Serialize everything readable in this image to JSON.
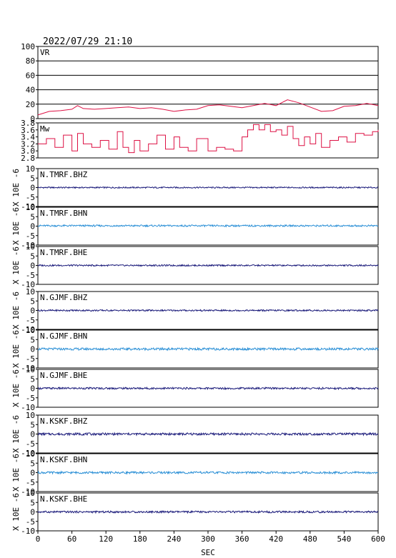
{
  "chart_data": {
    "type": "line",
    "title": "2022/07/29 21:10",
    "xlabel": "SEC",
    "xlim": [
      0,
      600
    ],
    "xticks": [
      "0",
      "60",
      "120",
      "180",
      "240",
      "300",
      "360",
      "420",
      "480",
      "540",
      "600"
    ],
    "xtick_values": [
      0,
      60,
      120,
      180,
      240,
      300,
      360,
      420,
      480,
      540,
      600
    ],
    "colors": {
      "vr": "#dd1144",
      "mw": "#dd1144",
      "dark": "#1a1a7a",
      "light": "#2a8fd6"
    },
    "vr": {
      "label": "VR",
      "ylim": [
        0,
        100
      ],
      "yticks": [
        "0",
        "20",
        "40",
        "60",
        "80",
        "100"
      ],
      "ytick_values": [
        0,
        20,
        40,
        60,
        80,
        100
      ],
      "x": [
        0,
        20,
        40,
        60,
        70,
        80,
        100,
        120,
        140,
        160,
        180,
        200,
        220,
        240,
        260,
        280,
        300,
        320,
        340,
        360,
        380,
        400,
        420,
        440,
        460,
        480,
        500,
        520,
        540,
        560,
        580,
        600
      ],
      "values": [
        5,
        10,
        11,
        13,
        18,
        14,
        13,
        14,
        15,
        16,
        14,
        15,
        13,
        10,
        12,
        13,
        18,
        19,
        17,
        15,
        18,
        21,
        18,
        26,
        22,
        16,
        10,
        11,
        17,
        18,
        21,
        18
      ]
    },
    "mw": {
      "label": "Mw",
      "ylim": [
        2.8,
        3.8
      ],
      "yticks": [
        "2.8",
        "3.0",
        "3.2",
        "3.4",
        "3.6",
        "3.8"
      ],
      "ytick_values": [
        2.8,
        3.0,
        3.2,
        3.4,
        3.6,
        3.8
      ],
      "x": [
        0,
        15,
        30,
        45,
        60,
        70,
        80,
        95,
        110,
        125,
        140,
        150,
        160,
        170,
        180,
        195,
        210,
        225,
        240,
        250,
        265,
        280,
        300,
        315,
        330,
        345,
        360,
        370,
        380,
        390,
        400,
        410,
        420,
        430,
        440,
        450,
        460,
        470,
        480,
        490,
        500,
        515,
        530,
        545,
        560,
        575,
        590,
        600
      ],
      "values": [
        3.2,
        3.35,
        3.1,
        3.45,
        3.0,
        3.5,
        3.2,
        3.1,
        3.3,
        3.05,
        3.55,
        3.1,
        2.95,
        3.3,
        3.0,
        3.2,
        3.45,
        3.05,
        3.4,
        3.1,
        3.0,
        3.35,
        3.0,
        3.1,
        3.05,
        3.0,
        3.4,
        3.6,
        3.75,
        3.6,
        3.75,
        3.55,
        3.6,
        3.45,
        3.7,
        3.35,
        3.15,
        3.4,
        3.2,
        3.5,
        3.1,
        3.3,
        3.4,
        3.25,
        3.5,
        3.45,
        3.55,
        3.6
      ]
    },
    "traces_ylabel": "X 10E -6",
    "traces_ylim": [
      -10,
      10
    ],
    "traces_yticks": [
      "-10",
      "-5",
      "0",
      "5",
      "10"
    ],
    "traces_ytick_values": [
      -10,
      -5,
      0,
      5,
      10
    ],
    "traces": [
      {
        "name": "N.TMRF.BHZ",
        "color": "dark",
        "amp": 0.35,
        "offset": 0
      },
      {
        "name": "N.TMRF.BHN",
        "color": "light",
        "amp": 0.45,
        "offset": 0.2
      },
      {
        "name": "N.TMRF.BHE",
        "color": "dark",
        "amp": 0.4,
        "offset": 0
      },
      {
        "name": "N.GJMF.BHZ",
        "color": "dark",
        "amp": 0.4,
        "offset": 0
      },
      {
        "name": "N.GJMF.BHN",
        "color": "light",
        "amp": 0.6,
        "offset": 0
      },
      {
        "name": "N.GJMF.BHE",
        "color": "dark",
        "amp": 0.5,
        "offset": 0
      },
      {
        "name": "N.KSKF.BHZ",
        "color": "dark",
        "amp": 0.6,
        "offset": 0
      },
      {
        "name": "N.KSKF.BHN",
        "color": "light",
        "amp": 0.55,
        "offset": 0
      },
      {
        "name": "N.KSKF.BHE",
        "color": "dark",
        "amp": 0.5,
        "offset": 0
      }
    ]
  }
}
